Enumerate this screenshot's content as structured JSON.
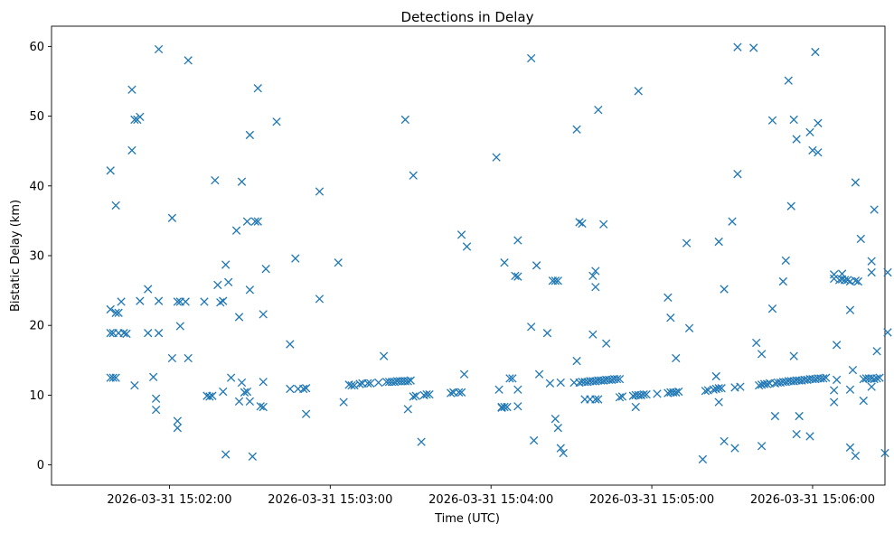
{
  "chart_data": {
    "type": "scatter",
    "title": "Detections in Delay",
    "xlabel": "Time (UTC)",
    "ylabel": "Bistatic Delay (km)",
    "marker": "x",
    "color": "#1f77b4",
    "xlim": [
      -22,
      289
    ],
    "ylim": [
      -2.9,
      62.9
    ],
    "x_unit": "seconds after 2026-03-31 15:01:38",
    "x_ticks": [
      {
        "value": 22,
        "label": "2026-03-31 15:02:00"
      },
      {
        "value": 82,
        "label": "2026-03-31 15:03:00"
      },
      {
        "value": 142,
        "label": "2026-03-31 15:04:00"
      },
      {
        "value": 202,
        "label": "2026-03-31 15:05:00"
      },
      {
        "value": 262,
        "label": "2026-03-31 15:06:00"
      }
    ],
    "y_ticks": [
      {
        "value": 0,
        "label": "0"
      },
      {
        "value": 10,
        "label": "10"
      },
      {
        "value": 20,
        "label": "20"
      },
      {
        "value": 30,
        "label": "30"
      },
      {
        "value": 40,
        "label": "40"
      },
      {
        "value": 50,
        "label": "50"
      },
      {
        "value": 60,
        "label": "60"
      }
    ],
    "points": [
      [
        0,
        42.2
      ],
      [
        0,
        22.3
      ],
      [
        0,
        18.9
      ],
      [
        0,
        12.5
      ],
      [
        1,
        12.5
      ],
      [
        1,
        18.9
      ],
      [
        2,
        21.8
      ],
      [
        2,
        37.2
      ],
      [
        2,
        12.5
      ],
      [
        3,
        21.8
      ],
      [
        3,
        18.9
      ],
      [
        4,
        23.4
      ],
      [
        5,
        18.9
      ],
      [
        6,
        18.8
      ],
      [
        8,
        53.8
      ],
      [
        8,
        45.1
      ],
      [
        9,
        11.4
      ],
      [
        9,
        49.5
      ],
      [
        10,
        49.5
      ],
      [
        11,
        49.9
      ],
      [
        11,
        23.5
      ],
      [
        14,
        25.2
      ],
      [
        14,
        18.9
      ],
      [
        16,
        12.6
      ],
      [
        17,
        9.5
      ],
      [
        17,
        7.9
      ],
      [
        18,
        59.6
      ],
      [
        18,
        23.5
      ],
      [
        18,
        18.9
      ],
      [
        23,
        35.4
      ],
      [
        23,
        15.3
      ],
      [
        25,
        6.3
      ],
      [
        25,
        5.3
      ],
      [
        25,
        23.4
      ],
      [
        26,
        19.9
      ],
      [
        26,
        23.4
      ],
      [
        28,
        23.4
      ],
      [
        29,
        58.0
      ],
      [
        29,
        15.3
      ],
      [
        35,
        23.4
      ],
      [
        36,
        9.9
      ],
      [
        37,
        9.8
      ],
      [
        38,
        9.9
      ],
      [
        39,
        40.8
      ],
      [
        40,
        25.8
      ],
      [
        41,
        23.3
      ],
      [
        42,
        10.5
      ],
      [
        42,
        23.5
      ],
      [
        43,
        28.7
      ],
      [
        43,
        1.5
      ],
      [
        44,
        26.2
      ],
      [
        45,
        12.5
      ],
      [
        47,
        33.6
      ],
      [
        48,
        21.2
      ],
      [
        48,
        9.1
      ],
      [
        49,
        40.6
      ],
      [
        49,
        11.8
      ],
      [
        50,
        10.4
      ],
      [
        51,
        10.5
      ],
      [
        51,
        34.9
      ],
      [
        52,
        25.1
      ],
      [
        52,
        9.1
      ],
      [
        52,
        47.3
      ],
      [
        53,
        1.2
      ],
      [
        54,
        34.9
      ],
      [
        55,
        34.9
      ],
      [
        55,
        54.0
      ],
      [
        56,
        8.4
      ],
      [
        57,
        8.3
      ],
      [
        57,
        21.6
      ],
      [
        57,
        11.9
      ],
      [
        58,
        28.1
      ],
      [
        62,
        49.2
      ],
      [
        67,
        17.3
      ],
      [
        67,
        10.9
      ],
      [
        69,
        29.6
      ],
      [
        70,
        10.9
      ],
      [
        72,
        10.9
      ],
      [
        73,
        11.0
      ],
      [
        73,
        7.3
      ],
      [
        78,
        39.2
      ],
      [
        78,
        23.8
      ],
      [
        85,
        29.0
      ],
      [
        87,
        9.0
      ],
      [
        89,
        11.5
      ],
      [
        90,
        11.4
      ],
      [
        91,
        11.4
      ],
      [
        93,
        11.6
      ],
      [
        94,
        11.7
      ],
      [
        96,
        11.7
      ],
      [
        97,
        11.7
      ],
      [
        100,
        11.8
      ],
      [
        102,
        15.6
      ],
      [
        103,
        11.9
      ],
      [
        104,
        11.9
      ],
      [
        105,
        11.9
      ],
      [
        106,
        11.9
      ],
      [
        107,
        12.0
      ],
      [
        108,
        12.0
      ],
      [
        109,
        12.0
      ],
      [
        110,
        49.5
      ],
      [
        110,
        12.0
      ],
      [
        111,
        8.0
      ],
      [
        111,
        12.0
      ],
      [
        112,
        12.1
      ],
      [
        113,
        9.8
      ],
      [
        113,
        41.5
      ],
      [
        114,
        9.9
      ],
      [
        116,
        3.3
      ],
      [
        117,
        10.0
      ],
      [
        118,
        10.1
      ],
      [
        119,
        10.1
      ],
      [
        127,
        10.3
      ],
      [
        128,
        10.4
      ],
      [
        130,
        10.4
      ],
      [
        131,
        10.4
      ],
      [
        131,
        33.0
      ],
      [
        132,
        13.0
      ],
      [
        133,
        31.3
      ],
      [
        144,
        44.1
      ],
      [
        145,
        10.8
      ],
      [
        146,
        8.2
      ],
      [
        146,
        8.3
      ],
      [
        147,
        8.3
      ],
      [
        147,
        29.0
      ],
      [
        148,
        8.3
      ],
      [
        149,
        12.4
      ],
      [
        150,
        12.4
      ],
      [
        151,
        27.1
      ],
      [
        152,
        27.0
      ],
      [
        152,
        32.2
      ],
      [
        152,
        10.8
      ],
      [
        152,
        8.4
      ],
      [
        157,
        19.8
      ],
      [
        157,
        58.3
      ],
      [
        158,
        3.5
      ],
      [
        159,
        28.6
      ],
      [
        160,
        13.0
      ],
      [
        163,
        18.9
      ],
      [
        164,
        11.7
      ],
      [
        165,
        26.4
      ],
      [
        166,
        26.4
      ],
      [
        166,
        6.6
      ],
      [
        167,
        26.4
      ],
      [
        167,
        5.3
      ],
      [
        168,
        2.4
      ],
      [
        168,
        11.8
      ],
      [
        169,
        1.7
      ],
      [
        173,
        11.8
      ],
      [
        174,
        48.1
      ],
      [
        174,
        14.9
      ],
      [
        175,
        11.8
      ],
      [
        175,
        34.8
      ],
      [
        176,
        11.9
      ],
      [
        176,
        34.6
      ],
      [
        177,
        11.9
      ],
      [
        177,
        9.4
      ],
      [
        178,
        11.9
      ],
      [
        179,
        12.0
      ],
      [
        179,
        9.4
      ],
      [
        180,
        27.1
      ],
      [
        180,
        12.0
      ],
      [
        180,
        18.7
      ],
      [
        181,
        25.5
      ],
      [
        181,
        27.8
      ],
      [
        181,
        9.4
      ],
      [
        181,
        12.0
      ],
      [
        182,
        12.1
      ],
      [
        182,
        50.9
      ],
      [
        182,
        9.4
      ],
      [
        183,
        12.1
      ],
      [
        184,
        34.5
      ],
      [
        184,
        12.1
      ],
      [
        185,
        17.4
      ],
      [
        185,
        12.2
      ],
      [
        186,
        12.2
      ],
      [
        187,
        12.2
      ],
      [
        188,
        12.3
      ],
      [
        189,
        12.3
      ],
      [
        190,
        9.7
      ],
      [
        190,
        12.3
      ],
      [
        191,
        9.8
      ],
      [
        195,
        9.9
      ],
      [
        196,
        8.3
      ],
      [
        196,
        10.0
      ],
      [
        197,
        53.6
      ],
      [
        197,
        10.0
      ],
      [
        198,
        10.0
      ],
      [
        199,
        10.1
      ],
      [
        200,
        10.1
      ],
      [
        204,
        10.2
      ],
      [
        208,
        24.0
      ],
      [
        208,
        10.3
      ],
      [
        209,
        10.4
      ],
      [
        209,
        21.1
      ],
      [
        210,
        10.4
      ],
      [
        211,
        10.4
      ],
      [
        211,
        15.3
      ],
      [
        212,
        10.5
      ],
      [
        215,
        31.8
      ],
      [
        216,
        19.6
      ],
      [
        221,
        0.8
      ],
      [
        222,
        10.6
      ],
      [
        223,
        10.7
      ],
      [
        225,
        10.8
      ],
      [
        226,
        10.9
      ],
      [
        226,
        12.7
      ],
      [
        227,
        11.0
      ],
      [
        227,
        9.0
      ],
      [
        227,
        32.0
      ],
      [
        228,
        11.0
      ],
      [
        229,
        25.2
      ],
      [
        229,
        3.4
      ],
      [
        232,
        34.9
      ],
      [
        233,
        11.1
      ],
      [
        233,
        2.4
      ],
      [
        234,
        59.9
      ],
      [
        234,
        41.7
      ],
      [
        235,
        11.2
      ],
      [
        240,
        59.8
      ],
      [
        241,
        17.5
      ],
      [
        242,
        11.4
      ],
      [
        243,
        11.5
      ],
      [
        243,
        15.9
      ],
      [
        243,
        2.7
      ],
      [
        244,
        11.6
      ],
      [
        245,
        11.6
      ],
      [
        246,
        11.7
      ],
      [
        247,
        22.4
      ],
      [
        247,
        49.4
      ],
      [
        248,
        7.0
      ],
      [
        248,
        11.7
      ],
      [
        249,
        11.8
      ],
      [
        250,
        11.8
      ],
      [
        251,
        26.3
      ],
      [
        251,
        11.9
      ],
      [
        252,
        29.3
      ],
      [
        252,
        11.9
      ],
      [
        253,
        55.1
      ],
      [
        253,
        12.0
      ],
      [
        254,
        37.1
      ],
      [
        254,
        12.0
      ],
      [
        255,
        49.5
      ],
      [
        255,
        15.6
      ],
      [
        255,
        12.0
      ],
      [
        256,
        46.7
      ],
      [
        256,
        4.4
      ],
      [
        256,
        12.1
      ],
      [
        257,
        7.0
      ],
      [
        257,
        12.1
      ],
      [
        258,
        12.1
      ],
      [
        259,
        12.2
      ],
      [
        260,
        12.2
      ],
      [
        261,
        47.7
      ],
      [
        261,
        4.1
      ],
      [
        261,
        12.3
      ],
      [
        262,
        45.1
      ],
      [
        262,
        12.3
      ],
      [
        263,
        59.2
      ],
      [
        263,
        12.3
      ],
      [
        264,
        44.8
      ],
      [
        264,
        49.0
      ],
      [
        264,
        12.4
      ],
      [
        265,
        12.4
      ],
      [
        266,
        12.4
      ],
      [
        267,
        12.5
      ],
      [
        270,
        27.3
      ],
      [
        270,
        26.7
      ],
      [
        270,
        10.7
      ],
      [
        270,
        9.0
      ],
      [
        271,
        17.2
      ],
      [
        271,
        12.2
      ],
      [
        272,
        26.5
      ],
      [
        273,
        27.4
      ],
      [
        273,
        26.6
      ],
      [
        274,
        26.5
      ],
      [
        275,
        26.5
      ],
      [
        276,
        2.5
      ],
      [
        276,
        10.8
      ],
      [
        276,
        22.2
      ],
      [
        276,
        26.3
      ],
      [
        277,
        13.6
      ],
      [
        278,
        40.5
      ],
      [
        278,
        26.4
      ],
      [
        278,
        1.3
      ],
      [
        279,
        26.3
      ],
      [
        280,
        32.4
      ],
      [
        281,
        12.3
      ],
      [
        281,
        9.2
      ],
      [
        282,
        12.4
      ],
      [
        283,
        12.4
      ],
      [
        284,
        29.2
      ],
      [
        284,
        27.6
      ],
      [
        284,
        11.2
      ],
      [
        284,
        12.4
      ],
      [
        285,
        36.6
      ],
      [
        285,
        12.3
      ],
      [
        286,
        16.3
      ],
      [
        286,
        12.4
      ],
      [
        287,
        12.5
      ],
      [
        289,
        1.7
      ],
      [
        290,
        27.6
      ],
      [
        290,
        19.0
      ]
    ]
  }
}
